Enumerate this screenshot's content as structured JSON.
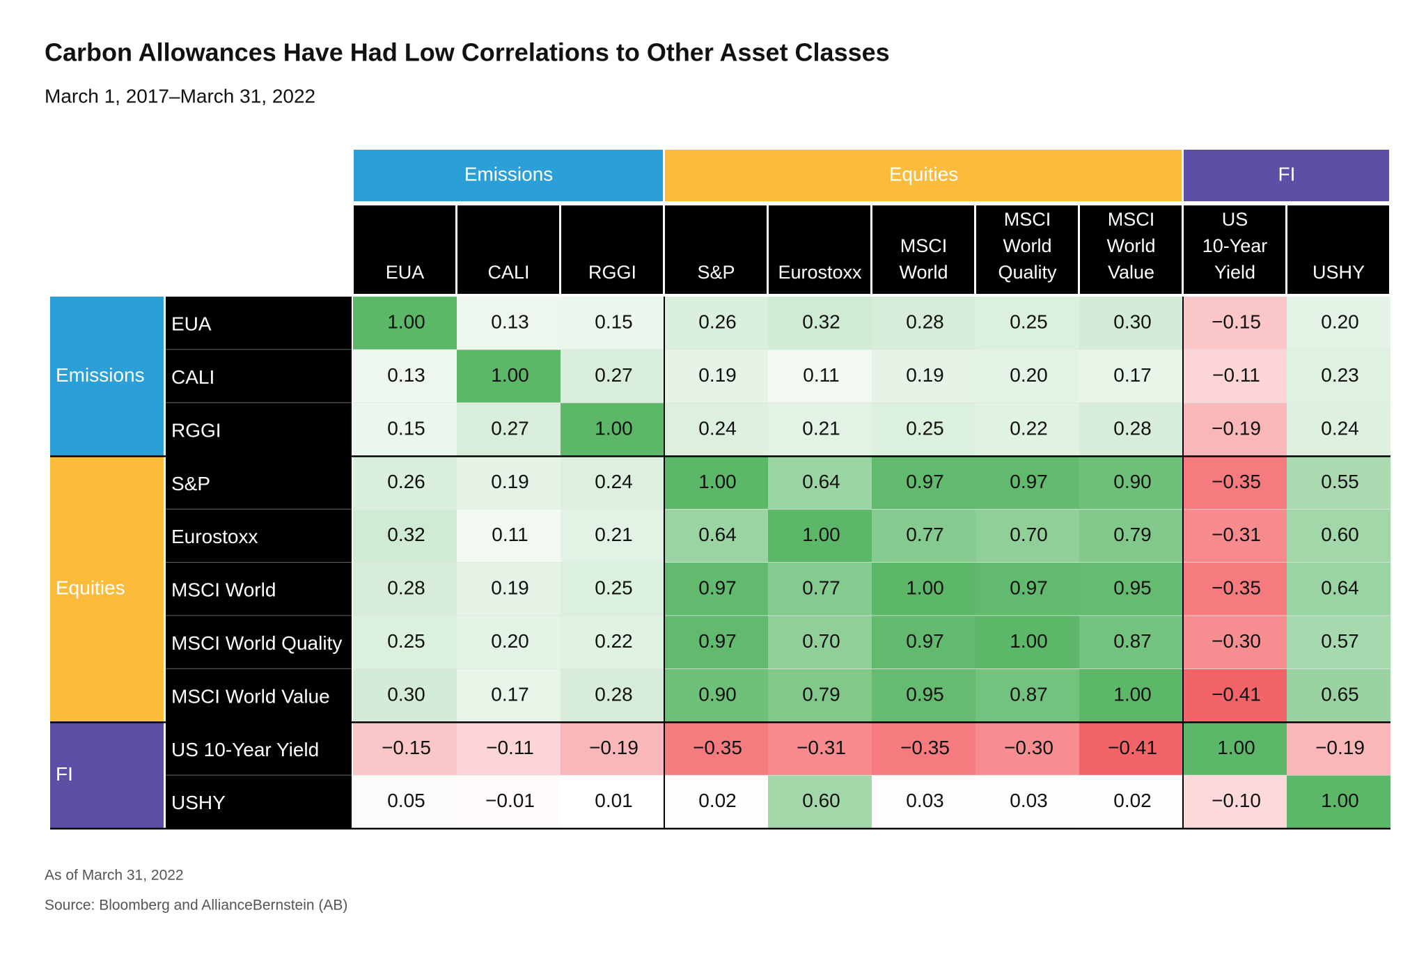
{
  "chart_data": {
    "type": "heatmap",
    "title": "Carbon Allowances Have Had Low Correlations to Other Asset Classes",
    "subtitle": "March 1, 2017–March 31, 2022",
    "groups": [
      {
        "name": "Emissions",
        "color": "#2a9fd8",
        "size": 3
      },
      {
        "name": "Equities",
        "color": "#fbbb3b",
        "size": 5
      },
      {
        "name": "FI",
        "color": "#5c4fa6",
        "size": 2
      }
    ],
    "columns": [
      "EUA",
      "CALI",
      "RGGI",
      "S&P",
      "Eurostoxx",
      "MSCI World",
      "MSCI World Quality",
      "MSCI World Value",
      "US 10-Year Yield",
      "USHY"
    ],
    "rows": [
      "EUA",
      "CALI",
      "RGGI",
      "S&P",
      "Eurostoxx",
      "MSCI World",
      "MSCI World Quality",
      "MSCI World Value",
      "US 10-Year Yield",
      "USHY"
    ],
    "values": [
      [
        1.0,
        0.13,
        0.15,
        0.26,
        0.32,
        0.28,
        0.25,
        0.3,
        -0.15,
        0.2
      ],
      [
        0.13,
        1.0,
        0.27,
        0.19,
        0.11,
        0.19,
        0.2,
        0.17,
        -0.11,
        0.23
      ],
      [
        0.15,
        0.27,
        1.0,
        0.24,
        0.21,
        0.25,
        0.22,
        0.28,
        -0.19,
        0.24
      ],
      [
        0.26,
        0.19,
        0.24,
        1.0,
        0.64,
        0.97,
        0.97,
        0.9,
        -0.35,
        0.55
      ],
      [
        0.32,
        0.11,
        0.21,
        0.64,
        1.0,
        0.77,
        0.7,
        0.79,
        -0.31,
        0.6
      ],
      [
        0.28,
        0.19,
        0.25,
        0.97,
        0.77,
        1.0,
        0.97,
        0.95,
        -0.35,
        0.64
      ],
      [
        0.25,
        0.2,
        0.22,
        0.97,
        0.7,
        0.97,
        1.0,
        0.87,
        -0.3,
        0.57
      ],
      [
        0.3,
        0.17,
        0.28,
        0.9,
        0.79,
        0.95,
        0.87,
        1.0,
        -0.41,
        0.65
      ],
      [
        -0.15,
        -0.11,
        -0.19,
        -0.35,
        -0.31,
        -0.35,
        -0.3,
        -0.41,
        1.0,
        -0.19
      ],
      [
        0.05,
        -0.01,
        0.01,
        0.02,
        0.6,
        0.03,
        0.03,
        0.02,
        -0.1,
        1.0
      ]
    ],
    "value_labels": [
      [
        "1.00",
        "0.13",
        "0.15",
        "0.26",
        "0.32",
        "0.28",
        "0.25",
        "0.30",
        "−0.15",
        "0.20"
      ],
      [
        "0.13",
        "1.00",
        "0.27",
        "0.19",
        "0.11",
        "0.19",
        "0.20",
        "0.17",
        "−0.11",
        "0.23"
      ],
      [
        "0.15",
        "0.27",
        "1.00",
        "0.24",
        "0.21",
        "0.25",
        "0.22",
        "0.28",
        "−0.19",
        "0.24"
      ],
      [
        "0.26",
        "0.19",
        "0.24",
        "1.00",
        "0.64",
        "0.97",
        "0.97",
        "0.90",
        "−0.35",
        "0.55"
      ],
      [
        "0.32",
        "0.11",
        "0.21",
        "0.64",
        "1.00",
        "0.77",
        "0.70",
        "0.79",
        "−0.31",
        "0.60"
      ],
      [
        "0.28",
        "0.19",
        "0.25",
        "0.97",
        "0.77",
        "1.00",
        "0.97",
        "0.95",
        "−0.35",
        "0.64"
      ],
      [
        "0.25",
        "0.20",
        "0.22",
        "0.97",
        "0.70",
        "0.97",
        "1.00",
        "0.87",
        "−0.30",
        "0.57"
      ],
      [
        "0.30",
        "0.17",
        "0.28",
        "0.90",
        "0.79",
        "0.95",
        "0.87",
        "1.00",
        "−0.41",
        "0.65"
      ],
      [
        "−0.15",
        "−0.11",
        "−0.19",
        "−0.35",
        "−0.31",
        "−0.35",
        "−0.30",
        "−0.41",
        "1.00",
        "−0.19"
      ],
      [
        "0.05",
        "−0.01",
        "0.01",
        "0.02",
        "0.60",
        "0.03",
        "0.03",
        "0.02",
        "−0.10",
        "1.00"
      ]
    ],
    "color_scale": {
      "negative": "#f2555a",
      "zero": "#ffffff",
      "positive": "#5cb868"
    },
    "footnotes": [
      "As of March 31, 2022",
      "Source: Bloomberg and AllianceBernstein (AB)"
    ]
  }
}
